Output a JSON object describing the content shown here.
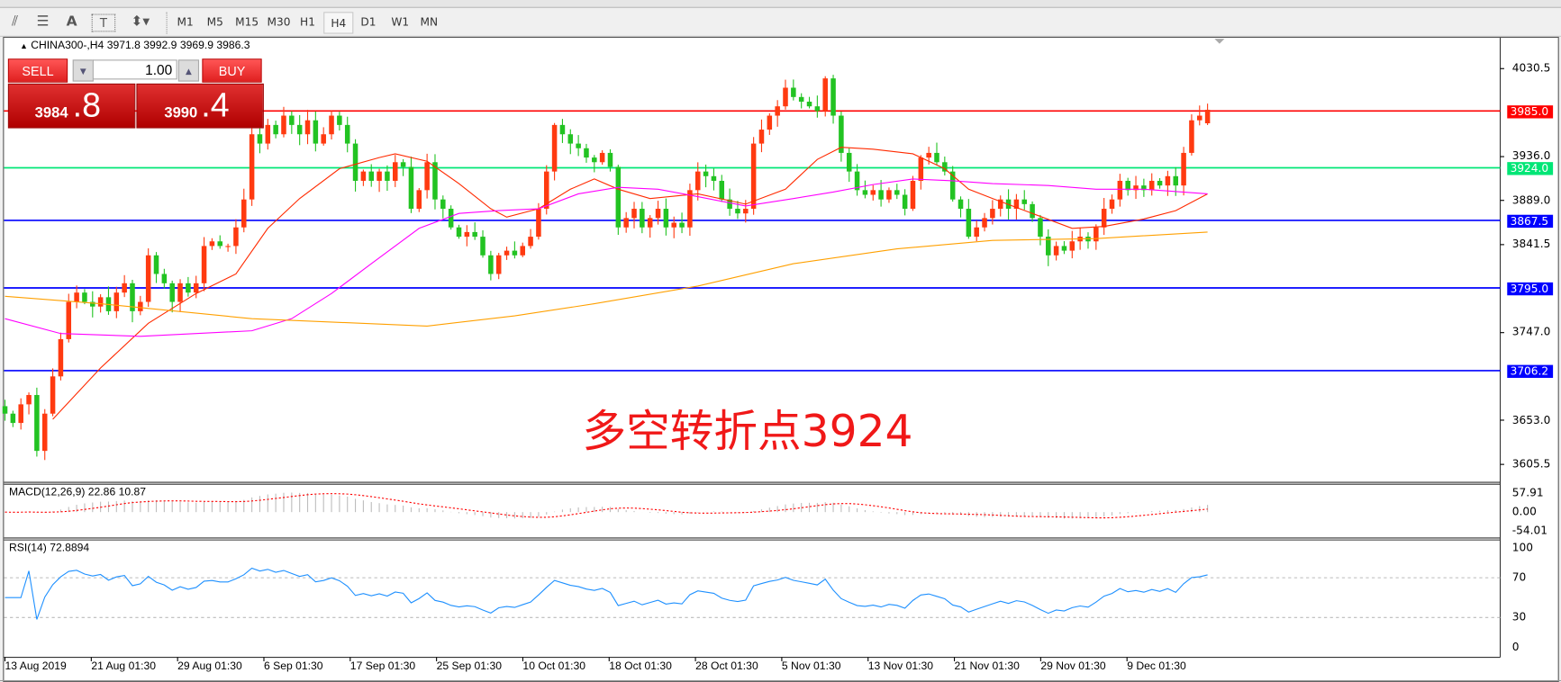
{
  "toolbar": {
    "icons": [
      "indicators-icon",
      "periodicity-icon",
      "text-icon",
      "text-label-icon",
      "arrows-icon"
    ],
    "text_tool": "A",
    "timeframes": [
      "M1",
      "M5",
      "M15",
      "M30",
      "H1",
      "H4",
      "D1",
      "W1",
      "MN"
    ],
    "selected_timeframe": "H4"
  },
  "chart": {
    "header": "CHINA300-,H4  3971.8 3992.9 3969.9 3986.3",
    "symbol": "CHINA300-",
    "period": "H4",
    "ohlc": {
      "open": 3971.8,
      "high": 3992.9,
      "low": 3969.9,
      "close": 3986.3
    },
    "annotation": "多空转折点3924",
    "price_axis": [
      "4030.5",
      "3936.0",
      "3889.0",
      "3841.5",
      "3747.0",
      "3653.0",
      "3605.5"
    ],
    "price_scale": {
      "top": 4030.5,
      "bottom": 3605.5
    },
    "horizontal_lines": [
      {
        "price": 3985.0,
        "label": "3985.0",
        "color": "#ff0000"
      },
      {
        "price": 3924.0,
        "label": "3924.0",
        "color": "#00e676"
      },
      {
        "price": 3867.5,
        "label": "3867.5",
        "color": "#0000ff"
      },
      {
        "price": 3795.0,
        "label": "3795.0",
        "color": "#0000ff"
      },
      {
        "price": 3706.2,
        "label": "3706.2",
        "color": "#0000ff"
      }
    ],
    "colors": {
      "bull": "#ff3a10",
      "bear": "#22c322"
    },
    "closes": [
      3660,
      3650,
      3670,
      3680,
      3620,
      3660,
      3700,
      3740,
      3780,
      3790,
      3780,
      3775,
      3785,
      3770,
      3790,
      3800,
      3770,
      3780,
      3830,
      3810,
      3800,
      3780,
      3800,
      3790,
      3800,
      3840,
      3845,
      3840,
      3840,
      3860,
      3890,
      3960,
      3950,
      3970,
      3960,
      3980,
      3970,
      3960,
      3975,
      3950,
      3960,
      3980,
      3970,
      3950,
      3910,
      3920,
      3910,
      3920,
      3910,
      3930,
      3925,
      3880,
      3900,
      3930,
      3890,
      3880,
      3860,
      3850,
      3855,
      3850,
      3830,
      3810,
      3830,
      3835,
      3830,
      3840,
      3850,
      3880,
      3920,
      3970,
      3960,
      3950,
      3945,
      3935,
      3930,
      3940,
      3925,
      3860,
      3870,
      3880,
      3860,
      3870,
      3880,
      3860,
      3865,
      3860,
      3900,
      3920,
      3915,
      3910,
      3890,
      3880,
      3875,
      3880,
      3950,
      3965,
      3980,
      3990,
      4010,
      4000,
      3995,
      3990,
      3985,
      4020,
      3980,
      3940,
      3920,
      3900,
      3895,
      3900,
      3890,
      3900,
      3895,
      3880,
      3910,
      3935,
      3940,
      3930,
      3920,
      3890,
      3880,
      3850,
      3860,
      3870,
      3880,
      3890,
      3880,
      3890,
      3885,
      3870,
      3850,
      3830,
      3840,
      3835,
      3845,
      3850,
      3845,
      3860,
      3880,
      3890,
      3910,
      3900,
      3905,
      3900,
      3910,
      3905,
      3915,
      3905,
      3940,
      3975,
      3980,
      3986.3
    ],
    "moving_averages": [
      {
        "color": "#ff2a00",
        "points": [
          [
            6,
            3654
          ],
          [
            12,
            3709
          ],
          [
            18,
            3757
          ],
          [
            24,
            3789
          ],
          [
            29,
            3810
          ],
          [
            33,
            3859
          ],
          [
            37,
            3891
          ],
          [
            42,
            3923
          ],
          [
            47,
            3935
          ],
          [
            49,
            3939
          ],
          [
            53,
            3931
          ],
          [
            57,
            3907
          ],
          [
            61,
            3880
          ],
          [
            63,
            3871
          ],
          [
            67,
            3880
          ],
          [
            71,
            3901
          ],
          [
            74,
            3912
          ],
          [
            77,
            3901
          ],
          [
            81,
            3891
          ],
          [
            87,
            3896
          ],
          [
            93,
            3885
          ],
          [
            98,
            3901
          ],
          [
            102,
            3933
          ],
          [
            105,
            3946
          ],
          [
            109,
            3944
          ],
          [
            114,
            3939
          ],
          [
            118,
            3923
          ],
          [
            121,
            3901
          ],
          [
            124,
            3891
          ],
          [
            129,
            3875
          ],
          [
            134,
            3859
          ],
          [
            138,
            3861
          ],
          [
            143,
            3869
          ],
          [
            147,
            3878
          ],
          [
            151,
            3896
          ]
        ]
      },
      {
        "color": "#ff00ff",
        "points": [
          [
            0,
            3762
          ],
          [
            7,
            3746
          ],
          [
            17,
            3743
          ],
          [
            31,
            3749
          ],
          [
            36,
            3762
          ],
          [
            41,
            3789
          ],
          [
            46,
            3821
          ],
          [
            52,
            3859
          ],
          [
            57,
            3875
          ],
          [
            62,
            3878
          ],
          [
            67,
            3880
          ],
          [
            72,
            3896
          ],
          [
            77,
            3903
          ],
          [
            82,
            3901
          ],
          [
            87,
            3893
          ],
          [
            93,
            3883
          ],
          [
            99,
            3891
          ],
          [
            104,
            3898
          ],
          [
            109,
            3906
          ],
          [
            114,
            3912
          ],
          [
            119,
            3910
          ],
          [
            124,
            3907
          ],
          [
            131,
            3905
          ],
          [
            137,
            3901
          ],
          [
            143,
            3901
          ],
          [
            151,
            3896
          ]
        ]
      },
      {
        "color": "#ffa000",
        "points": [
          [
            0,
            3786
          ],
          [
            12,
            3778
          ],
          [
            31,
            3762
          ],
          [
            53,
            3754
          ],
          [
            64,
            3765
          ],
          [
            74,
            3778
          ],
          [
            87,
            3797
          ],
          [
            99,
            3821
          ],
          [
            112,
            3837
          ],
          [
            124,
            3846
          ],
          [
            137,
            3848
          ],
          [
            151,
            3855
          ]
        ]
      }
    ]
  },
  "trade_panel": {
    "sell_label": "SELL",
    "buy_label": "BUY",
    "lot": "1.00",
    "sell_small": "3984",
    "sell_big": ".8",
    "buy_small": "3990",
    "buy_big": ".4"
  },
  "macd": {
    "label": "MACD(12,26,9) 22.86 10.87",
    "axis": [
      "57.91",
      "0.00",
      "-54.01"
    ],
    "main": 22.86,
    "signal": 10.87,
    "signal_color": "#ff0000"
  },
  "rsi": {
    "label": "RSI(14) 72.8894",
    "value": 72.8894,
    "axis": [
      "100",
      "70",
      "30",
      "0"
    ],
    "levels": [
      70,
      30
    ],
    "color": "#1e90ff"
  },
  "dates": [
    "13 Aug 2019",
    "21 Aug 01:30",
    "29 Aug 01:30",
    "6 Sep 01:30",
    "17 Sep 01:30",
    "25 Sep 01:30",
    "10 Oct 01:30",
    "18 Oct 01:30",
    "28 Oct 01:30",
    "5 Nov 01:30",
    "13 Nov 01:30",
    "21 Nov 01:30",
    "29 Nov 01:30",
    "9 Dec 01:30"
  ]
}
